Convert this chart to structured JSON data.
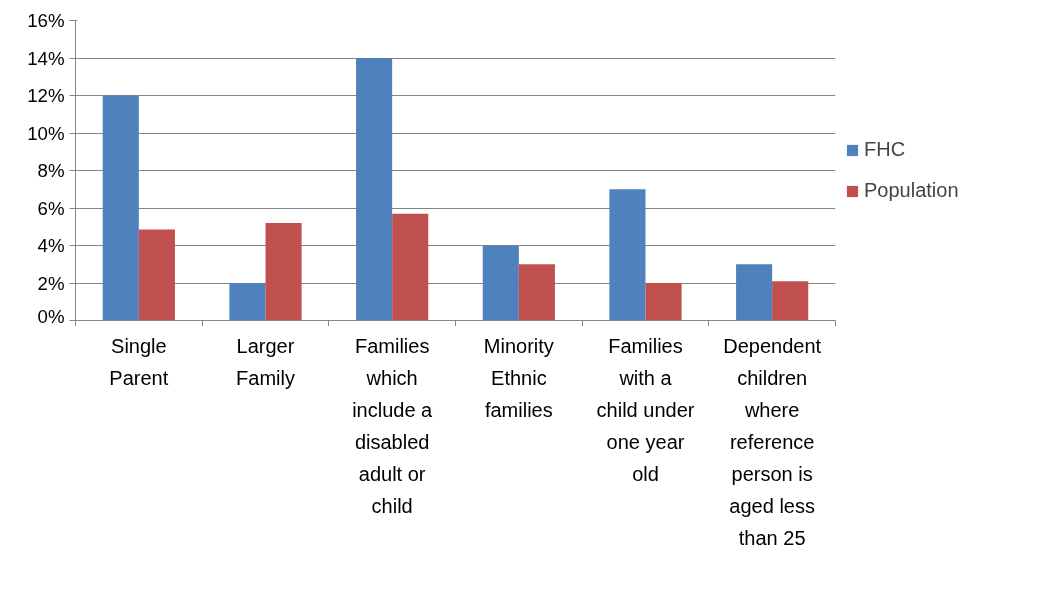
{
  "chart_data": {
    "type": "bar",
    "categories": [
      "Single Parent",
      "Larger Family",
      "Families which include a disabled adult or child",
      "Minority Ethnic families",
      "Families with a child under one year old",
      "Dependent children where reference person is aged less than 25"
    ],
    "series": [
      {
        "name": "FHC",
        "color": "#4f81bd",
        "values": [
          12,
          2,
          14,
          4,
          7,
          3
        ]
      },
      {
        "name": "Population",
        "color": "#c0504d",
        "values": [
          4.85,
          5.2,
          5.7,
          3.0,
          2.0,
          2.1
        ]
      }
    ],
    "ylim": [
      0,
      16
    ],
    "yticks": [
      {
        "value": 0,
        "label": "0%"
      },
      {
        "value": 2,
        "label": "2%"
      },
      {
        "value": 4,
        "label": "4%"
      },
      {
        "value": 6,
        "label": "6%"
      },
      {
        "value": 8,
        "label": "8%"
      },
      {
        "value": 10,
        "label": "10%"
      },
      {
        "value": 12,
        "label": "12%"
      },
      {
        "value": 14,
        "label": "14%"
      },
      {
        "value": 16,
        "label": "16%"
      }
    ],
    "grid": "y",
    "legend": "right"
  }
}
